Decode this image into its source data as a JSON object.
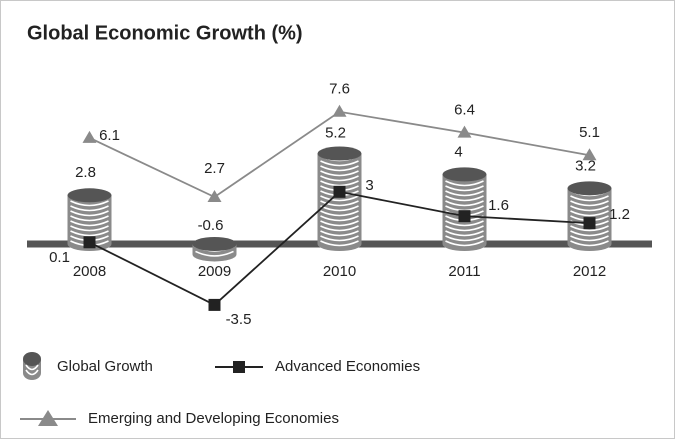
{
  "chart_data": {
    "type": "coin-bar-line",
    "title": "Global Economic Growth (%)",
    "categories": [
      "2008",
      "2009",
      "2010",
      "2011",
      "2012"
    ],
    "series": [
      {
        "name": "Global Growth",
        "type": "coin-bar",
        "color": "#8a8a8a",
        "values": [
          2.8,
          -0.6,
          5.2,
          4,
          3.2
        ]
      },
      {
        "name": "Advanced Economies",
        "type": "line",
        "marker": "square",
        "color": "#222222",
        "values": [
          0.1,
          -3.5,
          3,
          1.6,
          1.2
        ]
      },
      {
        "name": "Emerging and Developing Economies",
        "type": "line",
        "marker": "triangle",
        "color": "#8a8a8a",
        "values": [
          6.1,
          2.7,
          7.6,
          6.4,
          5.1
        ]
      }
    ]
  }
}
